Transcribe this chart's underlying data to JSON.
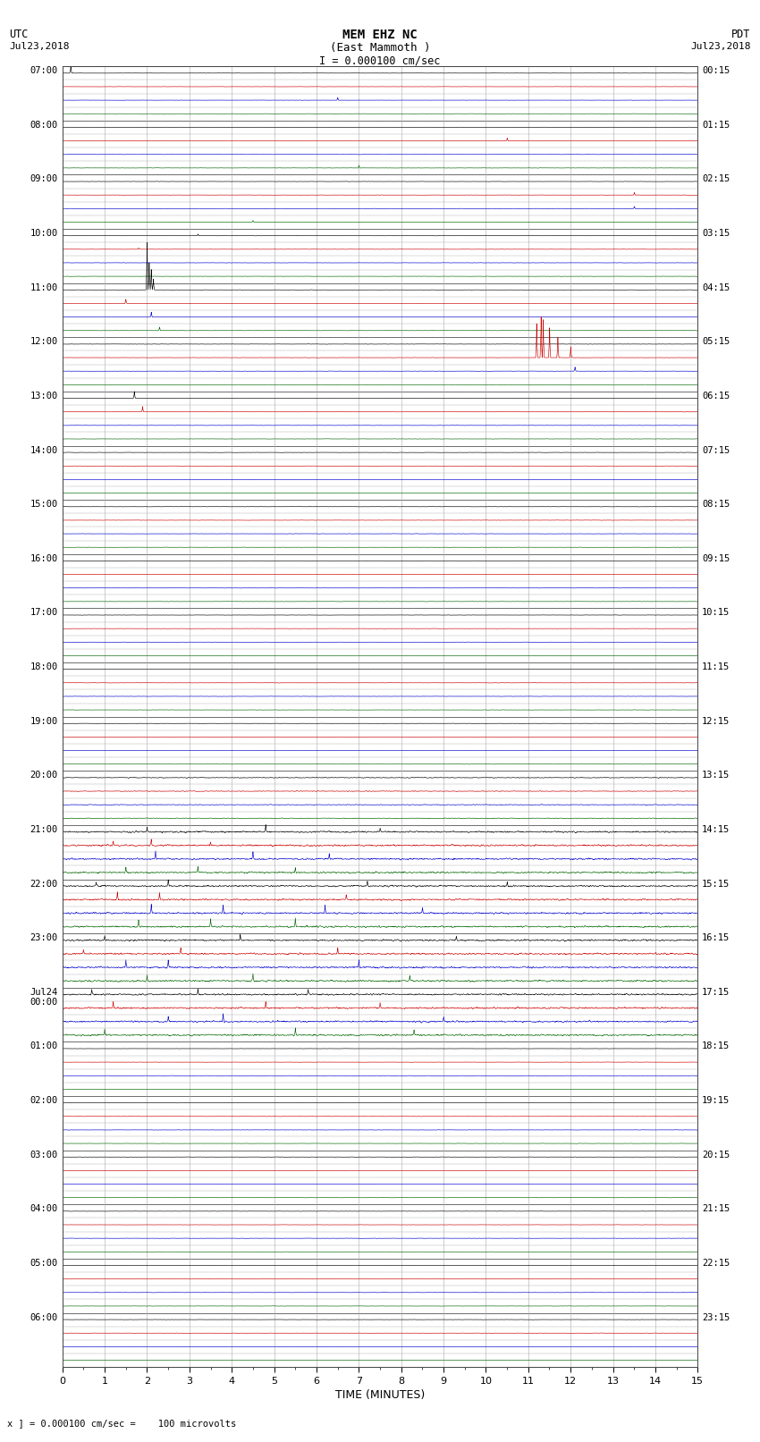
{
  "title_line1": "MEM EHZ NC",
  "title_line2": "(East Mammoth )",
  "scale_label": "I = 0.000100 cm/sec",
  "utc_label_line1": "UTC",
  "utc_label_line2": "Jul23,2018",
  "pdt_label_line1": "PDT",
  "pdt_label_line2": "Jul23,2018",
  "xlabel": "TIME (MINUTES)",
  "bottom_note": "x ] = 0.000100 cm/sec =    100 microvolts",
  "bg_color": "#ffffff",
  "grid_color": "#aaaaaa",
  "grid_color_dark": "#555555",
  "trace_colors": [
    "#000000",
    "#cc0000",
    "#0000cc",
    "#006600"
  ],
  "left_labels": [
    "07:00",
    "08:00",
    "09:00",
    "10:00",
    "11:00",
    "12:00",
    "13:00",
    "14:00",
    "15:00",
    "16:00",
    "17:00",
    "18:00",
    "19:00",
    "20:00",
    "21:00",
    "22:00",
    "23:00",
    "Jul24\n00:00",
    "01:00",
    "02:00",
    "03:00",
    "04:00",
    "05:00",
    "06:00"
  ],
  "right_labels": [
    "00:15",
    "01:15",
    "02:15",
    "03:15",
    "04:15",
    "05:15",
    "06:15",
    "07:15",
    "08:15",
    "09:15",
    "10:15",
    "11:15",
    "12:15",
    "13:15",
    "14:15",
    "15:15",
    "16:15",
    "17:15",
    "18:15",
    "19:15",
    "20:15",
    "21:15",
    "22:15",
    "23:15"
  ],
  "num_hours": 24,
  "subrows_per_hour": 4,
  "minutes_per_row": 15,
  "fig_width": 8.5,
  "fig_height": 16.13
}
